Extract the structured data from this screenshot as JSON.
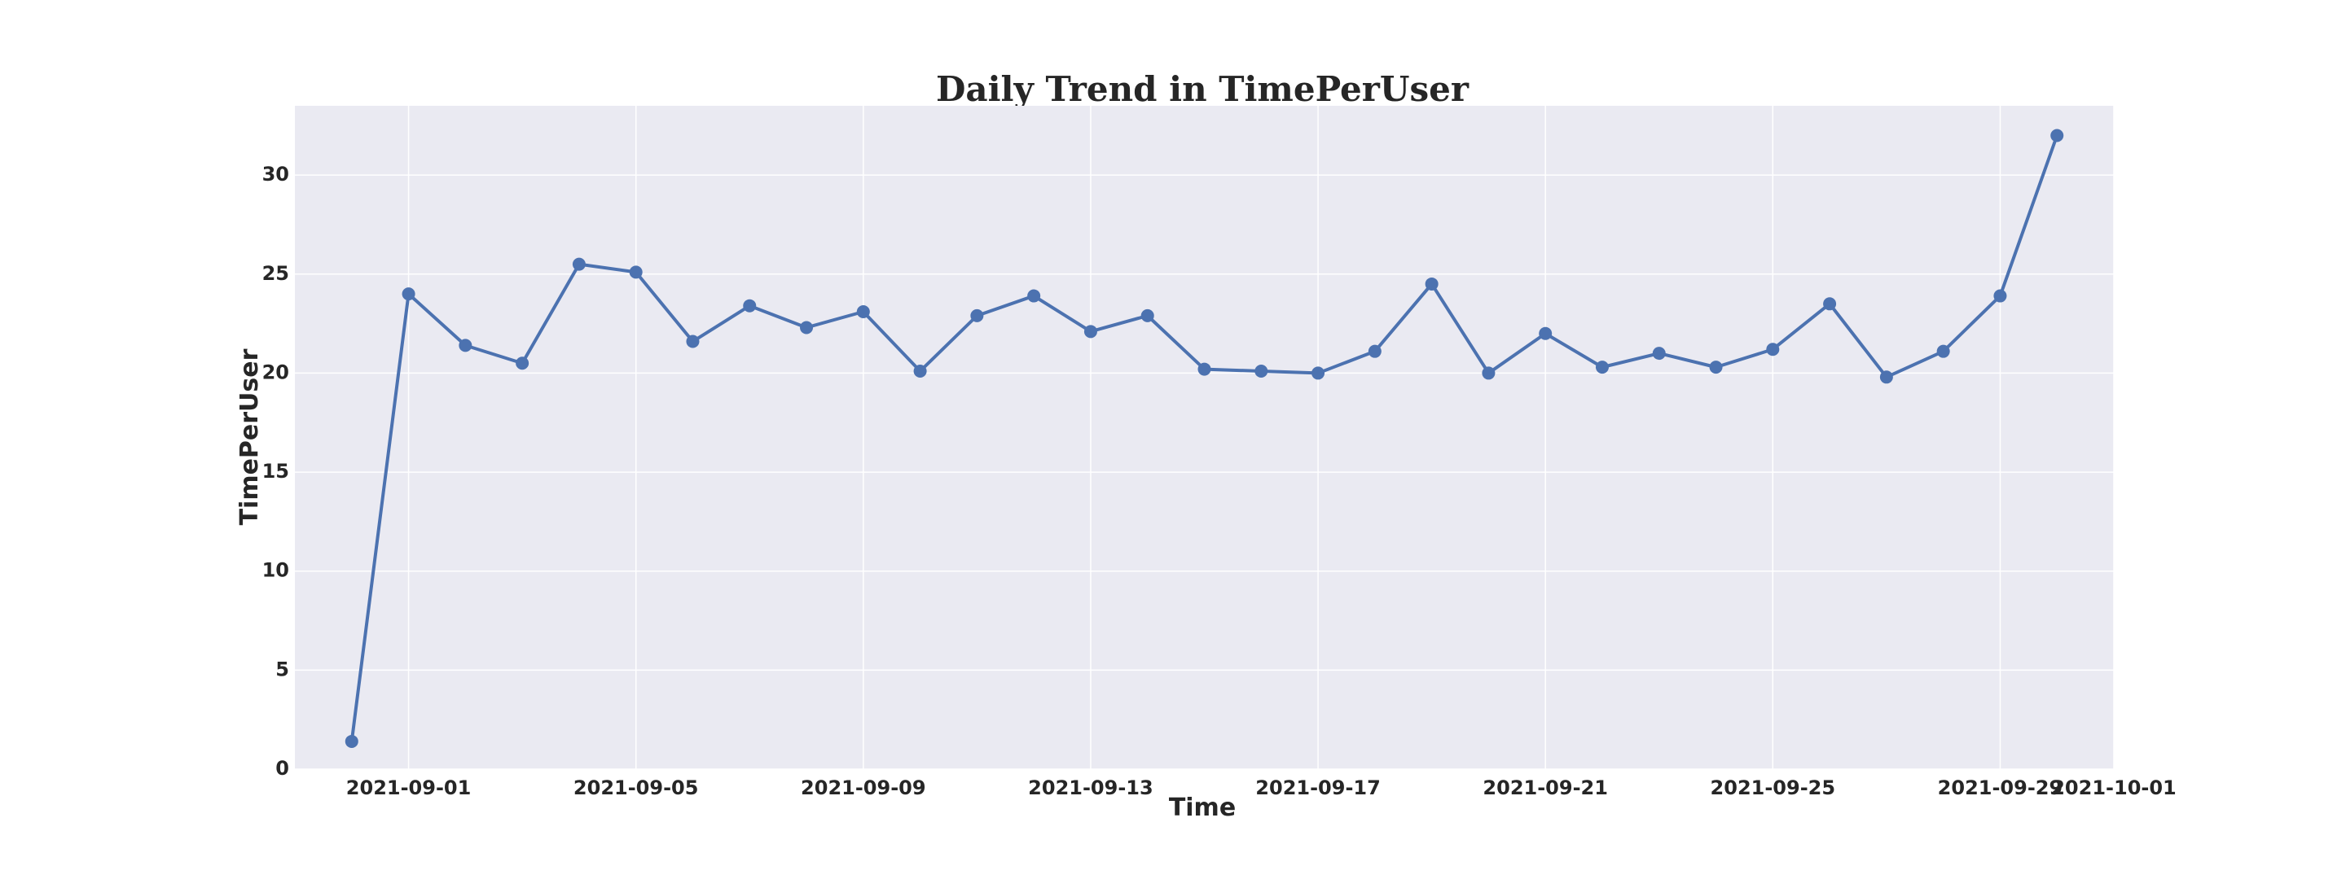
{
  "chart_data": {
    "type": "line",
    "title": "Daily Trend in TimePerUser",
    "xlabel": "Time",
    "ylabel": "TimePerUser",
    "x": [
      "2021-08-31",
      "2021-09-01",
      "2021-09-02",
      "2021-09-03",
      "2021-09-04",
      "2021-09-05",
      "2021-09-06",
      "2021-09-07",
      "2021-09-08",
      "2021-09-09",
      "2021-09-10",
      "2021-09-11",
      "2021-09-12",
      "2021-09-13",
      "2021-09-14",
      "2021-09-15",
      "2021-09-16",
      "2021-09-17",
      "2021-09-18",
      "2021-09-19",
      "2021-09-20",
      "2021-09-21",
      "2021-09-22",
      "2021-09-23",
      "2021-09-24",
      "2021-09-25",
      "2021-09-26",
      "2021-09-27",
      "2021-09-28",
      "2021-09-29",
      "2021-09-30"
    ],
    "series": [
      {
        "values": [
          1.4,
          24.0,
          21.4,
          20.5,
          25.5,
          25.1,
          21.6,
          23.4,
          22.3,
          23.1,
          20.1,
          22.9,
          23.9,
          22.1,
          22.9,
          20.2,
          20.1,
          20.0,
          21.1,
          24.5,
          20.0,
          22.0,
          20.3,
          21.0,
          20.3,
          21.2,
          23.5,
          19.8,
          21.1,
          23.9,
          32.0
        ],
        "color": "#4c72b0"
      }
    ],
    "x_ticks": [
      "2021-09-01",
      "2021-09-05",
      "2021-09-09",
      "2021-09-13",
      "2021-09-17",
      "2021-09-21",
      "2021-09-25",
      "2021-09-29",
      "2021-10-01"
    ],
    "y_ticks": [
      0,
      5,
      10,
      15,
      20,
      25,
      30
    ],
    "xlim": [
      "2021-08-30",
      "2021-10-01"
    ],
    "ylim": [
      0,
      33.5
    ],
    "grid": true,
    "background": "#eaeaf2",
    "grid_color": "#ffffff"
  }
}
